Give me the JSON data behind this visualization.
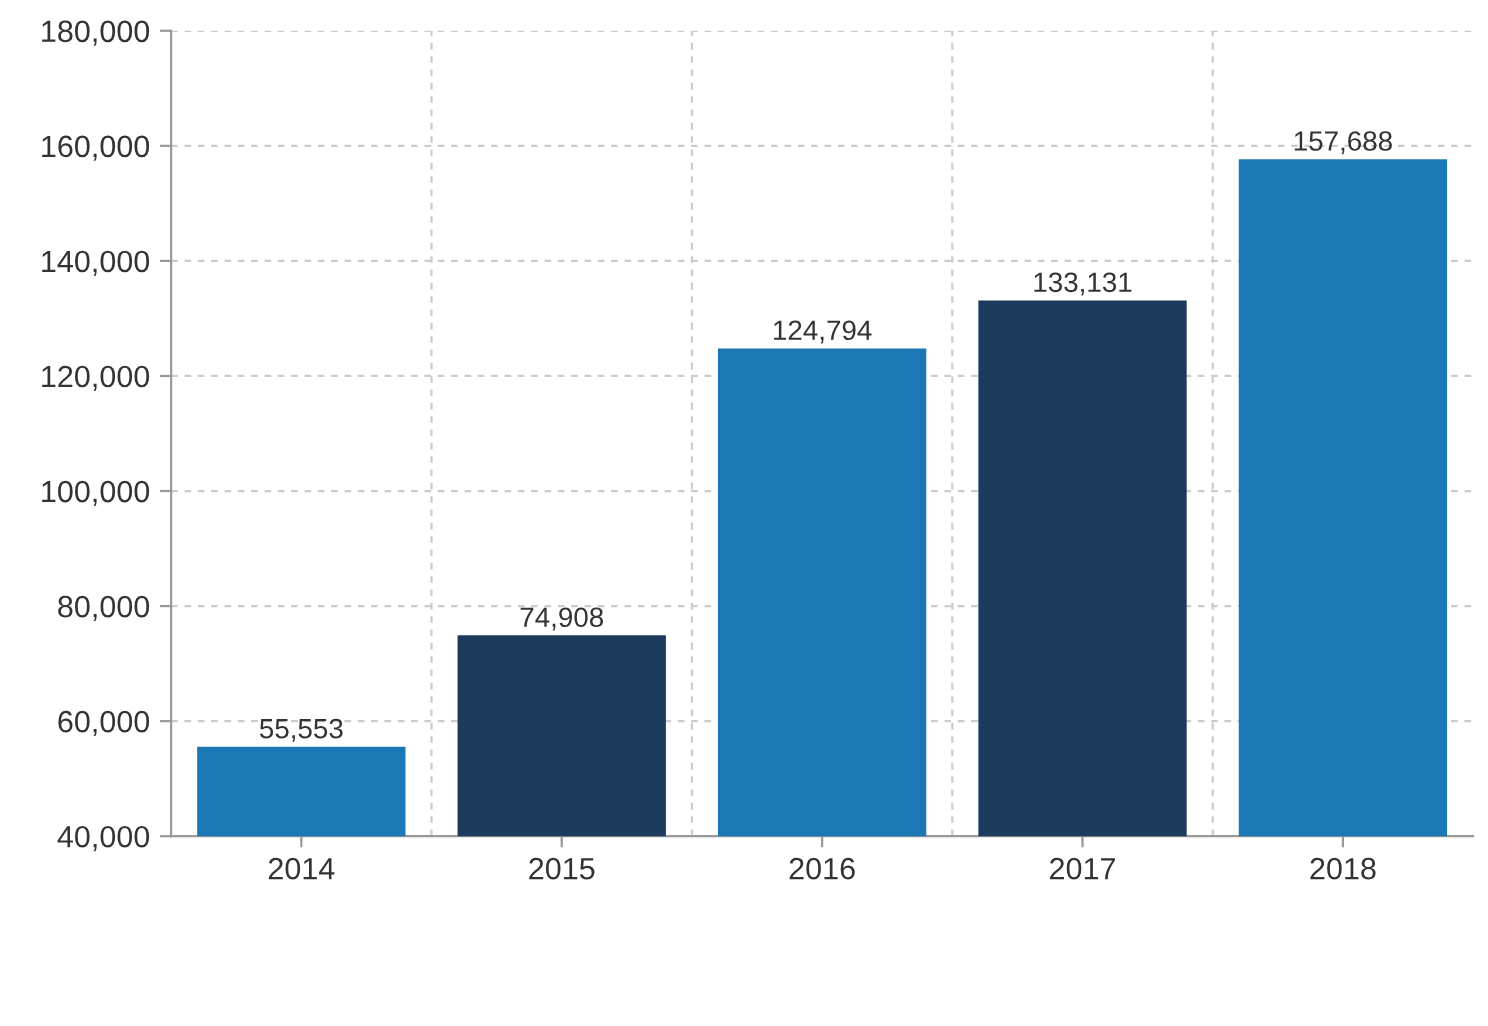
{
  "chart_data": {
    "type": "bar",
    "categories": [
      "2014",
      "2015",
      "2016",
      "2017",
      "2018"
    ],
    "values": [
      55553,
      74908,
      124794,
      133131,
      157688
    ],
    "colors": [
      "#1b78b4",
      "#1b3a5c",
      "#1b78b4",
      "#1b3a5c",
      "#1b78b4"
    ],
    "ylim": [
      40000,
      180000
    ],
    "yticks": [
      {
        "value": 40000,
        "label": "40,000"
      },
      {
        "value": 60000,
        "label": "60,000"
      },
      {
        "value": 80000,
        "label": "80,000"
      },
      {
        "value": 100000,
        "label": "100,000"
      },
      {
        "value": 120000,
        "label": "120,000"
      },
      {
        "value": 140000,
        "label": "140,000"
      },
      {
        "value": 160000,
        "label": "160,000"
      },
      {
        "value": 180000,
        "label": "180,000"
      }
    ],
    "value_labels": [
      "55,553",
      "74,908",
      "124,794",
      "133,131",
      "157,688"
    ],
    "grid": true
  }
}
